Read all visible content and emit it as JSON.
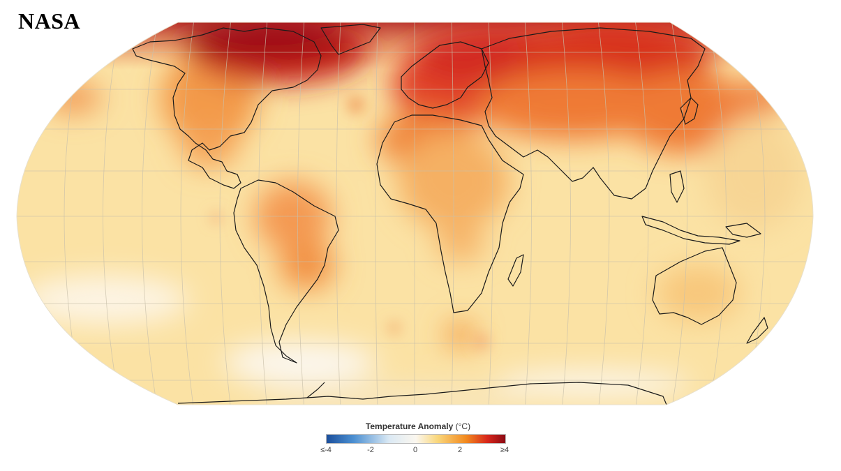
{
  "brand": {
    "text": "NASA"
  },
  "map": {
    "projection": "robinson",
    "graticule": true,
    "coastlines": true
  },
  "legend": {
    "title": "Temperature Anomaly",
    "unit": "(°C)",
    "ticks": [
      "≤-4",
      "-2",
      "0",
      "2",
      "≥4"
    ],
    "colors": {
      "min": "#1b4f9c",
      "low": "#4b8fd1",
      "mid_low": "#dbe9f4",
      "zero": "#fbf7ef",
      "mid_high": "#f9d77c",
      "high": "#f28a1f",
      "very_high": "#d7261b",
      "max": "#8c0a14"
    }
  }
}
